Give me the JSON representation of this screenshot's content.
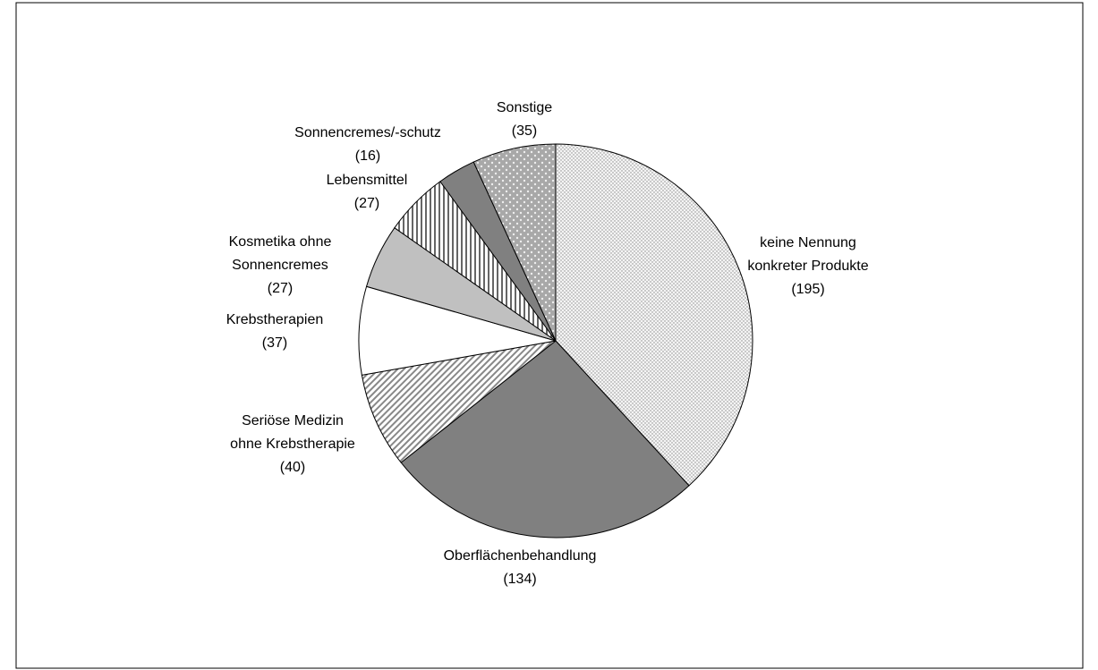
{
  "chart_data": {
    "type": "pie",
    "categories": [
      "keine Nennung\nkonkreter Produkte",
      "Oberflächenbehandlung",
      "Seriöse Medizin\nohne Krebstherapie",
      "Krebstherapien",
      "Kosmetika ohne\nSonnencremes",
      "Lebensmittel",
      "Sonnencremes/-schutz",
      "Sonstige"
    ],
    "values": [
      195,
      134,
      40,
      37,
      27,
      27,
      16,
      35
    ],
    "value_labels": [
      "(195)",
      "(134)",
      "(40)",
      "(37)",
      "(27)",
      "(27)",
      "(16)",
      "(35)"
    ],
    "colors": [
      "#f0f0f0",
      "#808080",
      "#ffffff",
      "#ffffff",
      "#c0c0c0",
      "#ffffff",
      "#808080",
      "#c8c8c8"
    ],
    "patterns": [
      "dots",
      "none",
      "diagonal",
      "none",
      "none",
      "vertical",
      "none",
      "diamond-dots"
    ]
  }
}
